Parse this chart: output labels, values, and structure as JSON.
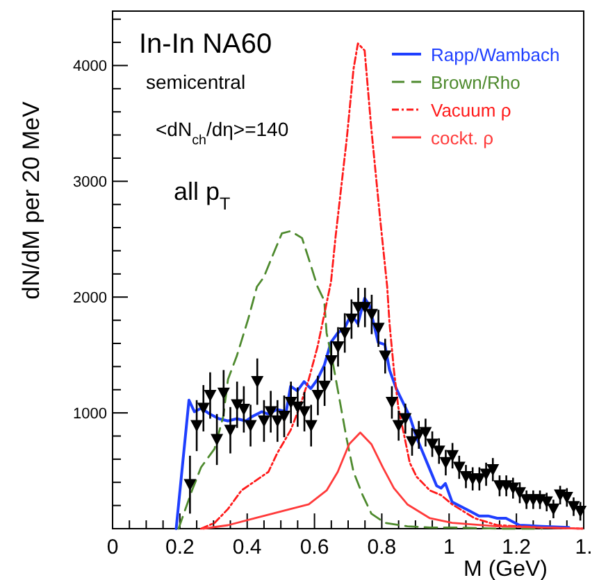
{
  "chart_data": {
    "type": "line",
    "xlabel": "M (GeV)",
    "ylabel": "dN/dM per 20 MeV",
    "annotations": [
      "In-In NA60",
      "semicentral",
      "<dN$_{ch}$/dη>=140",
      "all p$_{T}$"
    ],
    "xlim": [
      0,
      1.4
    ],
    "ylim": [
      0,
      4470
    ],
    "xticks": [
      0,
      {
        "value": 0.05,
        "label": null
      },
      {
        "value": 0.1,
        "label": null
      },
      {
        "value": 0.15,
        "label": null
      },
      0.2,
      {
        "value": 0.25,
        "label": null
      },
      {
        "value": 0.3,
        "label": null
      },
      {
        "value": 0.35,
        "label": null
      },
      0.4,
      {
        "value": 0.45,
        "label": null
      },
      {
        "value": 0.5,
        "label": null
      },
      {
        "value": 0.55,
        "label": null
      },
      0.6,
      {
        "value": 0.65,
        "label": null
      },
      {
        "value": 0.7,
        "label": null
      },
      {
        "value": 0.75,
        "label": null
      },
      0.8,
      {
        "value": 0.85,
        "label": null
      },
      {
        "value": 0.9,
        "label": null
      },
      {
        "value": 0.95,
        "label": null
      },
      1,
      {
        "value": 1.05,
        "label": null
      },
      {
        "value": 1.1,
        "label": null
      },
      {
        "value": 1.15,
        "label": null
      },
      1.2,
      {
        "value": 1.25,
        "label": null
      },
      {
        "value": 1.3,
        "label": null
      },
      {
        "value": 1.35,
        "label": null
      },
      {
        "value": 1.4,
        "label": "1."
      }
    ],
    "yticks": [
      {
        "value": 200,
        "label": null
      },
      {
        "value": 400,
        "label": null
      },
      {
        "value": 600,
        "label": null
      },
      {
        "value": 800,
        "label": null
      },
      1000,
      {
        "value": 1200,
        "label": null
      },
      {
        "value": 1400,
        "label": null
      },
      {
        "value": 1600,
        "label": null
      },
      {
        "value": 1800,
        "label": null
      },
      2000,
      {
        "value": 2200,
        "label": null
      },
      {
        "value": 2400,
        "label": null
      },
      {
        "value": 2600,
        "label": null
      },
      {
        "value": 2800,
        "label": null
      },
      3000,
      {
        "value": 3200,
        "label": null
      },
      {
        "value": 3400,
        "label": null
      },
      {
        "value": 3600,
        "label": null
      },
      {
        "value": 3800,
        "label": null
      },
      4000,
      {
        "value": 4200,
        "label": null
      },
      {
        "value": 4400,
        "label": null
      }
    ],
    "grid": false,
    "legend": "top right",
    "series": [
      {
        "type": "scatter",
        "marker": "triangle",
        "color": "#000000",
        "x": [
          0.23,
          0.25,
          0.27,
          0.29,
          0.31,
          0.33,
          0.35,
          0.37,
          0.39,
          0.41,
          0.43,
          0.45,
          0.47,
          0.49,
          0.51,
          0.53,
          0.55,
          0.57,
          0.59,
          0.61,
          0.63,
          0.65,
          0.67,
          0.69,
          0.71,
          0.73,
          0.75,
          0.77,
          0.79,
          0.81,
          0.83,
          0.85,
          0.87,
          0.89,
          0.91,
          0.93,
          0.95,
          0.97,
          0.99,
          1.01,
          1.03,
          1.05,
          1.07,
          1.09,
          1.11,
          1.13,
          1.15,
          1.17,
          1.19,
          1.21,
          1.23,
          1.25,
          1.27,
          1.29,
          1.31,
          1.33,
          1.35,
          1.37,
          1.39
        ],
        "values": [
          380,
          890,
          1040,
          1150,
          770,
          1170,
          850,
          1070,
          1030,
          890,
          1270,
          930,
          1010,
          930,
          970,
          1090,
          1050,
          1010,
          890,
          1150,
          1230,
          1450,
          1570,
          1690,
          1810,
          1910,
          1910,
          1850,
          1730,
          1490,
          1090,
          890,
          950,
          750,
          810,
          830,
          730,
          670,
          570,
          630,
          530,
          450,
          430,
          430,
          470,
          510,
          370,
          370,
          350,
          310,
          250,
          250,
          250,
          230,
          170,
          290,
          270,
          190,
          150
        ],
        "errors": [
          250,
          220,
          200,
          200,
          220,
          200,
          200,
          200,
          200,
          180,
          200,
          180,
          180,
          180,
          180,
          180,
          170,
          170,
          180,
          170,
          170,
          170,
          170,
          170,
          170,
          170,
          170,
          170,
          160,
          150,
          140,
          130,
          130,
          120,
          120,
          120,
          110,
          110,
          110,
          110,
          100,
          100,
          100,
          100,
          100,
          100,
          90,
          90,
          90,
          90,
          80,
          80,
          80,
          80,
          80,
          80,
          80,
          80,
          80
        ]
      },
      {
        "name": "Rapp/Wambach",
        "color": "#1f3fff",
        "line_style": "solid",
        "x": [
          0.189,
          0.227,
          0.243,
          0.263,
          0.289,
          0.316,
          0.343,
          0.369,
          0.396,
          0.416,
          0.443,
          0.463,
          0.489,
          0.516,
          0.529,
          0.549,
          0.569,
          0.589,
          0.609,
          0.629,
          0.649,
          0.669,
          0.689,
          0.709,
          0.729,
          0.749,
          0.763,
          0.776,
          0.789,
          0.809,
          0.823,
          0.843,
          0.863,
          0.883,
          0.903,
          0.923,
          0.943,
          0.963,
          0.976,
          0.989,
          1.009,
          1.036,
          1.063,
          1.089,
          1.116,
          1.143,
          1.169,
          1.209,
          1.276,
          1.356
        ],
        "values": [
          0,
          1110,
          1010,
          1040,
          990,
          950,
          930,
          950,
          930,
          970,
          1010,
          990,
          1030,
          1010,
          1230,
          1190,
          1270,
          1210,
          1290,
          1410,
          1610,
          1690,
          1730,
          1850,
          1770,
          1990,
          1930,
          1770,
          1610,
          1590,
          1370,
          1210,
          1090,
          970,
          790,
          650,
          510,
          370,
          350,
          390,
          230,
          190,
          150,
          110,
          110,
          90,
          90,
          30,
          20,
          10
        ]
      },
      {
        "name": "Brown/Rho",
        "color": "#4e8a2e",
        "line_style": "dashed",
        "x": [
          0.196,
          0.236,
          0.263,
          0.303,
          0.329,
          0.343,
          0.369,
          0.403,
          0.429,
          0.449,
          0.483,
          0.503,
          0.529,
          0.563,
          0.583,
          0.609,
          0.629,
          0.636,
          0.656,
          0.676,
          0.696,
          0.716,
          0.743,
          0.769,
          0.809,
          0.876,
          0.943,
          1.009,
          1.143,
          1.276
        ],
        "values": [
          0,
          330,
          530,
          690,
          970,
          1290,
          1490,
          1810,
          2090,
          2170,
          2410,
          2550,
          2570,
          2510,
          2330,
          2090,
          1970,
          1690,
          1410,
          1090,
          770,
          490,
          290,
          130,
          50,
          20,
          10,
          10,
          0,
          0
        ]
      },
      {
        "name": "Vacuum ρ",
        "color": "#ff1a1a",
        "line_style": "dotted",
        "x": [
          0.263,
          0.303,
          0.343,
          0.383,
          0.423,
          0.463,
          0.489,
          0.529,
          0.556,
          0.583,
          0.609,
          0.629,
          0.649,
          0.663,
          0.696,
          0.716,
          0.729,
          0.749,
          0.769,
          0.796,
          0.816,
          0.823,
          0.836,
          0.849,
          0.869,
          0.883,
          0.903,
          0.943,
          0.976,
          1.009,
          1.076,
          1.143,
          1.276,
          1.396
        ],
        "values": [
          0,
          50,
          170,
          330,
          410,
          490,
          650,
          850,
          1050,
          1290,
          1570,
          1850,
          2130,
          2530,
          3370,
          3970,
          4190,
          4130,
          3450,
          2650,
          2090,
          1770,
          1370,
          1050,
          770,
          570,
          450,
          330,
          290,
          210,
          90,
          30,
          10,
          0
        ]
      },
      {
        "name": "cockt. ρ",
        "color": "#ff3a3a",
        "line_style": "solid",
        "x": [
          0.269,
          0.343,
          0.423,
          0.503,
          0.583,
          0.636,
          0.669,
          0.703,
          0.736,
          0.769,
          0.803,
          0.836,
          0.876,
          0.943,
          1.009,
          1.143,
          1.276,
          1.396
        ],
        "values": [
          0,
          30,
          90,
          150,
          210,
          330,
          490,
          730,
          830,
          730,
          530,
          350,
          210,
          90,
          50,
          20,
          10,
          0
        ]
      }
    ]
  }
}
